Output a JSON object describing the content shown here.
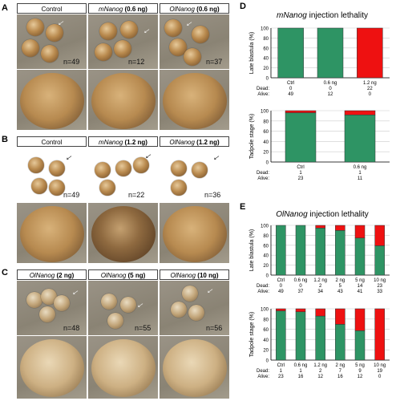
{
  "colors": {
    "alive": "#2e9464",
    "dead": "#ee1111"
  },
  "panels": {
    "A": {
      "letter": "A",
      "headers": [
        {
          "plain": "Control",
          "gene": "",
          "dose": ""
        },
        {
          "plain": "",
          "gene": "mNanog",
          "dose": " (0.6 ng)"
        },
        {
          "plain": "",
          "gene": "OlNanog",
          "dose": " (0.6 ng)"
        }
      ],
      "counts": [
        "n=49",
        "n=12",
        "n=37"
      ]
    },
    "B": {
      "letter": "B",
      "headers": [
        {
          "plain": "Control",
          "gene": "",
          "dose": ""
        },
        {
          "plain": "",
          "gene": "mNanog",
          "dose": " (1.2 ng)"
        },
        {
          "plain": "",
          "gene": "OlNanog",
          "dose": " (1.2 ng)"
        }
      ],
      "counts": [
        "n=49",
        "n=22",
        "n=36"
      ]
    },
    "C": {
      "letter": "C",
      "headers": [
        {
          "plain": "",
          "gene": "OlNanog",
          "dose": " (2 ng)"
        },
        {
          "plain": "",
          "gene": "OlNanog",
          "dose": " (5 ng)"
        },
        {
          "plain": "",
          "gene": "OlNanog",
          "dose": " (10 ng)"
        }
      ],
      "counts": [
        "n=48",
        "n=55",
        "n=56"
      ]
    },
    "D": {
      "letter": "D",
      "title_gene": "mNanog",
      "title_rest": " injection lethality"
    },
    "E": {
      "letter": "E",
      "title_gene": "OlNanog",
      "title_rest": " injection lethality"
    }
  },
  "chart_data": [
    {
      "type": "bar",
      "panel": "D",
      "stacked": true,
      "ylabel": "Late blastula (%)",
      "ylim": [
        0,
        100
      ],
      "yticks": [
        0,
        20,
        40,
        60,
        80,
        100
      ],
      "categories": [
        "Ctrl",
        "0.6 ng",
        "1.2 ng"
      ],
      "row_labels": [
        "Dead:",
        "Alive:"
      ],
      "dead": [
        0,
        0,
        22
      ],
      "alive": [
        49,
        12,
        0
      ],
      "dead_text": [
        "0",
        "0",
        "22"
      ],
      "alive_text": [
        "49",
        "12",
        "0"
      ]
    },
    {
      "type": "bar",
      "panel": "D",
      "stacked": true,
      "ylabel": "Tadpole stage (%)",
      "ylim": [
        0,
        100
      ],
      "yticks": [
        0,
        20,
        40,
        60,
        80,
        100
      ],
      "categories": [
        "Ctrl",
        "0.6 ng"
      ],
      "row_labels": [
        "Dead:",
        "Alive:"
      ],
      "dead": [
        1,
        1
      ],
      "alive": [
        23,
        11
      ],
      "dead_text": [
        "1",
        "1"
      ],
      "alive_text": [
        "23",
        "11"
      ]
    },
    {
      "type": "bar",
      "panel": "E",
      "stacked": true,
      "ylabel": "Late blastula (%)",
      "ylim": [
        0,
        100
      ],
      "yticks": [
        0,
        20,
        40,
        60,
        80,
        100
      ],
      "categories": [
        "Ctrl",
        "0.6 ng",
        "1.2 ng",
        "2 ng",
        "5 ng",
        "10 ng"
      ],
      "row_labels": [
        "Dead:",
        "Alive:"
      ],
      "dead": [
        0,
        0,
        2,
        5,
        14,
        23
      ],
      "alive": [
        49,
        37,
        34,
        43,
        41,
        33
      ],
      "dead_text": [
        "0",
        "0",
        "2",
        "5",
        "14",
        "23"
      ],
      "alive_text": [
        "49",
        "37",
        "34",
        "43",
        "41",
        "33"
      ]
    },
    {
      "type": "bar",
      "panel": "E",
      "stacked": true,
      "ylabel": "Tadpole stage (%)",
      "ylim": [
        0,
        100
      ],
      "yticks": [
        0,
        20,
        40,
        60,
        80,
        100
      ],
      "categories": [
        "Ctrl",
        "0.6 ng",
        "1.2 ng",
        "2 ng",
        "5 ng",
        "10 ng"
      ],
      "row_labels": [
        "Dead:",
        "Alive:"
      ],
      "dead": [
        1,
        1,
        2,
        7,
        9,
        19
      ],
      "alive": [
        23,
        16,
        12,
        16,
        12,
        0
      ],
      "dead_text": [
        "1",
        "1",
        "2",
        "7",
        "9",
        "19"
      ],
      "alive_text": [
        "23",
        "16",
        "12",
        "16",
        "12",
        "0"
      ]
    }
  ]
}
